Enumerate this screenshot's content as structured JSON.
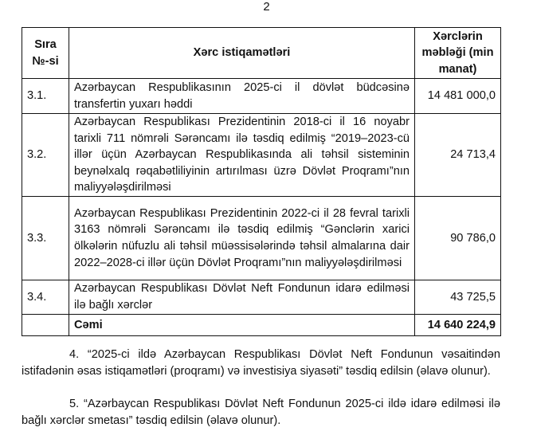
{
  "page_number": "2",
  "table": {
    "headers": [
      "Sıra №-si",
      "Xərc istiqamətləri",
      "Xərclərin məbləği (min manat)"
    ],
    "rows": [
      {
        "no": "3.1.",
        "desc": "Azərbaycan Respublikasının 2025-ci il dövlət büdcəsinə transfertin yuxarı həddi",
        "amount": "14 481 000,0"
      },
      {
        "no": "3.2.",
        "desc": "Azərbaycan Respublikası Prezidentinin 2018-ci il 16 noyabr tarixli 711 nömrəli Sərəncamı ilə təsdiq edilmiş “2019–2023-cü illər üçün Azərbaycan Respublikasında ali təhsil sisteminin beynəlxalq rəqabətliliyinin artırılması üzrə Dövlət Proqramı”nın maliyyələşdirilməsi",
        "amount": "24 713,4"
      },
      {
        "no": "3.3.",
        "desc": "Azərbaycan Respublikası Prezidentinin 2022-ci il 28 fevral tarixli 3163 nömrəli Sərəncamı ilə təsdiq edilmiş “Gənclərin xarici ölkələrin nüfuzlu ali təhsil müəssisələrində təhsil almalarına dair 2022–2028-ci illər üçün Dövlət Proqramı”nın maliyyələşdirilməsi",
        "amount": "90 786,0"
      },
      {
        "no": "3.4.",
        "desc": "Azərbaycan Respublikası Dövlət Neft Fondunun idarə edilməsi ilə bağlı xərclər",
        "amount": "43 725,5"
      }
    ],
    "total": {
      "label": "Cəmi",
      "amount": "14 640 224,9"
    }
  },
  "paragraphs": [
    "4. “2025-ci ildə Azərbaycan Respublikası Dövlət Neft Fondunun vəsaitindən istifadənin əsas istiqamətləri (proqramı) və investisiya siyasəti” təsdiq edilsin (əlavə olunur).",
    "5. “Azərbaycan Respublikası Dövlət Neft Fondunun 2025-ci ildə idarə edilməsi ilə bağlı xərclər smetası” təsdiq edilsin (əlavə olunur)."
  ]
}
